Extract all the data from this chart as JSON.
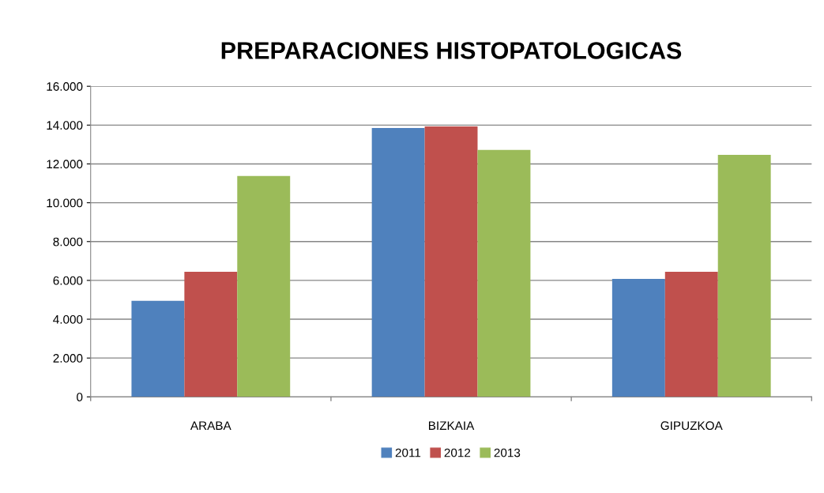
{
  "chart_data": {
    "type": "bar",
    "title": "PREPARACIONES HISTOPATOLOGICAS",
    "categories": [
      "ARABA",
      "BIZKAIA",
      "GIPUZKOA"
    ],
    "series": [
      {
        "name": "2011",
        "color": "#4f81bd",
        "values": [
          4950,
          13850,
          6080
        ]
      },
      {
        "name": "2012",
        "color": "#c0504d",
        "values": [
          6440,
          13930,
          6440
        ]
      },
      {
        "name": "2013",
        "color": "#9bbb59",
        "values": [
          11380,
          12720,
          12470
        ]
      }
    ],
    "ylim": [
      0,
      16000
    ],
    "yticks": [
      {
        "value": 0,
        "label": "0"
      },
      {
        "value": 2000,
        "label": "2.000"
      },
      {
        "value": 4000,
        "label": "4.000"
      },
      {
        "value": 6000,
        "label": "6.000"
      },
      {
        "value": 8000,
        "label": "8.000"
      },
      {
        "value": 10000,
        "label": "10.000"
      },
      {
        "value": 12000,
        "label": "12.000"
      },
      {
        "value": 14000,
        "label": "14.000"
      },
      {
        "value": 16000,
        "label": "16.000"
      }
    ],
    "grid": "y",
    "legend": "bottom"
  }
}
